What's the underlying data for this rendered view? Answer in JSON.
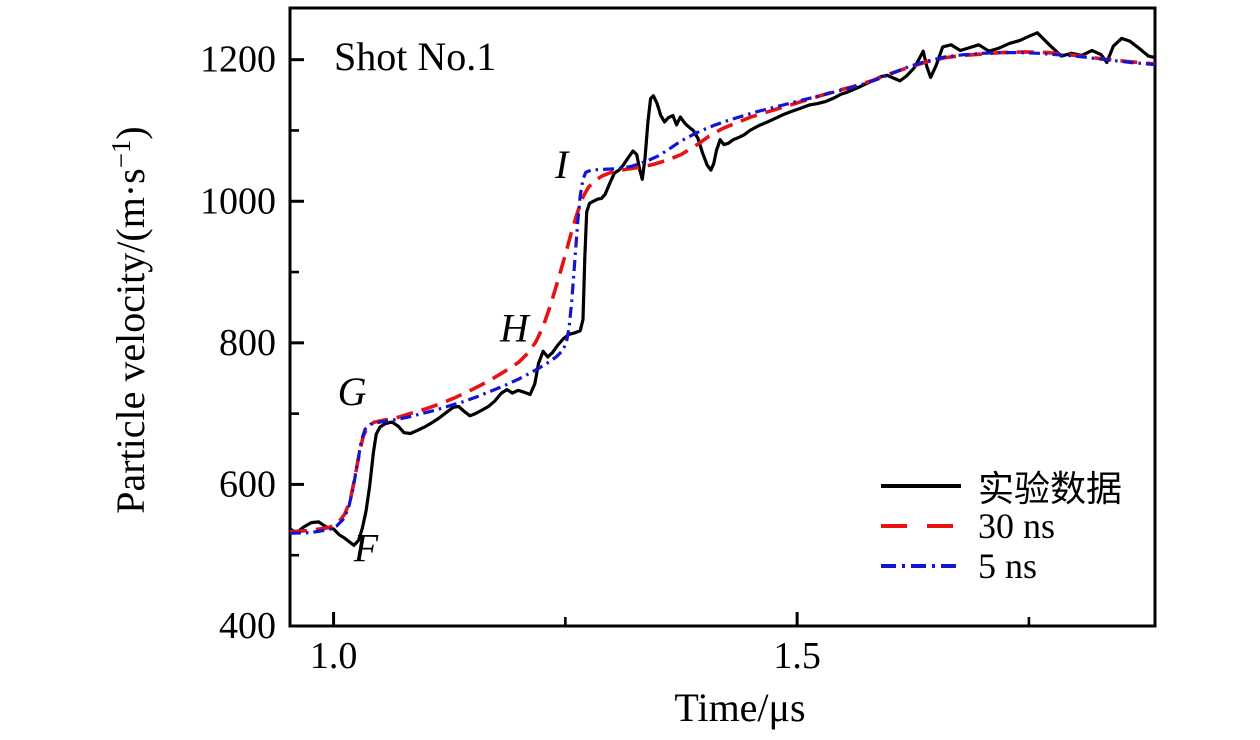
{
  "figure": {
    "annotation": "Shot No.1",
    "xlabel": "Time/μs",
    "ylabel_pre": "Particle velocity/(m·s",
    "ylabel_sup": "−1",
    "ylabel_post": ")"
  },
  "chart_data": {
    "type": "line",
    "title": "Shot No.1",
    "xlabel": "Time/μs",
    "ylabel": "Particle velocity/(m·s⁻¹)",
    "xlim": [
      0.953,
      1.886
    ],
    "ylim": [
      400,
      1273
    ],
    "grid": false,
    "legend_position": "lower right",
    "x_major_ticks": [
      1.0,
      1.5
    ],
    "x_major_tick_labels": [
      "1.0",
      "1.5"
    ],
    "x_minor_ticks": [
      1.25,
      1.75
    ],
    "y_major_ticks": [
      400,
      600,
      800,
      1000,
      1200
    ],
    "y_major_tick_labels": [
      "400",
      "600",
      "800",
      "1000",
      "1200"
    ],
    "y_minor_ticks": [
      500,
      700,
      900,
      1100
    ],
    "point_labels": [
      {
        "text": "F",
        "t": 1.035,
        "v": 510
      },
      {
        "text": "G",
        "t": 1.02,
        "v": 731
      },
      {
        "text": "H",
        "t": 1.195,
        "v": 821
      },
      {
        "text": "I",
        "t": 1.246,
        "v": 1052
      }
    ],
    "series": [
      {
        "name": "实验数据",
        "color": "#000000",
        "style": "solid",
        "width": 3.2,
        "points": [
          [
            0.953,
            537
          ],
          [
            0.96,
            532
          ],
          [
            0.968,
            540
          ],
          [
            0.976,
            546
          ],
          [
            0.984,
            547
          ],
          [
            0.992,
            540
          ],
          [
            1.0,
            537
          ],
          [
            1.006,
            529
          ],
          [
            1.012,
            524
          ],
          [
            1.017,
            519
          ],
          [
            1.022,
            514
          ],
          [
            1.027,
            521
          ],
          [
            1.031,
            538
          ],
          [
            1.035,
            562
          ],
          [
            1.039,
            598
          ],
          [
            1.043,
            645
          ],
          [
            1.046,
            671
          ],
          [
            1.05,
            681
          ],
          [
            1.056,
            686
          ],
          [
            1.063,
            688
          ],
          [
            1.07,
            682
          ],
          [
            1.076,
            673
          ],
          [
            1.083,
            672
          ],
          [
            1.09,
            676
          ],
          [
            1.098,
            681
          ],
          [
            1.106,
            687
          ],
          [
            1.114,
            694
          ],
          [
            1.122,
            702
          ],
          [
            1.129,
            709
          ],
          [
            1.135,
            710
          ],
          [
            1.141,
            703
          ],
          [
            1.147,
            697
          ],
          [
            1.153,
            700
          ],
          [
            1.16,
            705
          ],
          [
            1.167,
            710
          ],
          [
            1.174,
            718
          ],
          [
            1.181,
            729
          ],
          [
            1.187,
            734
          ],
          [
            1.193,
            729
          ],
          [
            1.199,
            733
          ],
          [
            1.206,
            730
          ],
          [
            1.212,
            727
          ],
          [
            1.217,
            742
          ],
          [
            1.221,
            771
          ],
          [
            1.226,
            788
          ],
          [
            1.231,
            780
          ],
          [
            1.236,
            786
          ],
          [
            1.242,
            797
          ],
          [
            1.248,
            806
          ],
          [
            1.254,
            812
          ],
          [
            1.26,
            814
          ],
          [
            1.266,
            817
          ],
          [
            1.269,
            833
          ],
          [
            1.271,
            920
          ],
          [
            1.273,
            985
          ],
          [
            1.276,
            997
          ],
          [
            1.28,
            1000
          ],
          [
            1.285,
            1003
          ],
          [
            1.289,
            1004
          ],
          [
            1.293,
            1010
          ],
          [
            1.298,
            1026
          ],
          [
            1.303,
            1040
          ],
          [
            1.308,
            1044
          ],
          [
            1.313,
            1052
          ],
          [
            1.318,
            1062
          ],
          [
            1.323,
            1071
          ],
          [
            1.327,
            1066
          ],
          [
            1.33,
            1046
          ],
          [
            1.333,
            1031
          ],
          [
            1.336,
            1062
          ],
          [
            1.339,
            1112
          ],
          [
            1.342,
            1145
          ],
          [
            1.345,
            1149
          ],
          [
            1.349,
            1138
          ],
          [
            1.353,
            1121
          ],
          [
            1.357,
            1112
          ],
          [
            1.361,
            1118
          ],
          [
            1.366,
            1121
          ],
          [
            1.37,
            1108
          ],
          [
            1.374,
            1119
          ],
          [
            1.379,
            1110
          ],
          [
            1.383,
            1105
          ],
          [
            1.388,
            1100
          ],
          [
            1.393,
            1089
          ],
          [
            1.398,
            1068
          ],
          [
            1.403,
            1051
          ],
          [
            1.407,
            1044
          ],
          [
            1.41,
            1053
          ],
          [
            1.413,
            1072
          ],
          [
            1.417,
            1087
          ],
          [
            1.421,
            1080
          ],
          [
            1.426,
            1082
          ],
          [
            1.431,
            1087
          ],
          [
            1.437,
            1090
          ],
          [
            1.443,
            1094
          ],
          [
            1.449,
            1100
          ],
          [
            1.459,
            1107
          ],
          [
            1.468,
            1112
          ],
          [
            1.478,
            1118
          ],
          [
            1.486,
            1123
          ],
          [
            1.494,
            1127
          ],
          [
            1.503,
            1131
          ],
          [
            1.513,
            1136
          ],
          [
            1.522,
            1138
          ],
          [
            1.531,
            1141
          ],
          [
            1.54,
            1146
          ],
          [
            1.547,
            1151
          ],
          [
            1.554,
            1154
          ],
          [
            1.561,
            1158
          ],
          [
            1.568,
            1162
          ],
          [
            1.576,
            1167
          ],
          [
            1.583,
            1171
          ],
          [
            1.59,
            1176
          ],
          [
            1.597,
            1178
          ],
          [
            1.604,
            1174
          ],
          [
            1.611,
            1170
          ],
          [
            1.618,
            1177
          ],
          [
            1.626,
            1188
          ],
          [
            1.632,
            1202
          ],
          [
            1.636,
            1212
          ],
          [
            1.64,
            1190
          ],
          [
            1.644,
            1175
          ],
          [
            1.65,
            1192
          ],
          [
            1.657,
            1218
          ],
          [
            1.666,
            1221
          ],
          [
            1.676,
            1213
          ],
          [
            1.686,
            1217
          ],
          [
            1.696,
            1221
          ],
          [
            1.707,
            1212
          ],
          [
            1.717,
            1216
          ],
          [
            1.729,
            1223
          ],
          [
            1.74,
            1227
          ],
          [
            1.75,
            1233
          ],
          [
            1.759,
            1238
          ],
          [
            1.772,
            1221
          ],
          [
            1.785,
            1205
          ],
          [
            1.796,
            1209
          ],
          [
            1.807,
            1206
          ],
          [
            1.818,
            1213
          ],
          [
            1.828,
            1207
          ],
          [
            1.834,
            1196
          ],
          [
            1.841,
            1219
          ],
          [
            1.85,
            1230
          ],
          [
            1.859,
            1226
          ],
          [
            1.869,
            1216
          ],
          [
            1.879,
            1205
          ],
          [
            1.886,
            1203
          ]
        ]
      },
      {
        "name": "30 ns",
        "color": "#e81214",
        "style": "dashed",
        "width": 3.6,
        "points": [
          [
            0.953,
            533
          ],
          [
            0.975,
            535
          ],
          [
            0.995,
            539
          ],
          [
            1.005,
            546
          ],
          [
            1.012,
            558
          ],
          [
            1.018,
            578
          ],
          [
            1.023,
            610
          ],
          [
            1.028,
            645
          ],
          [
            1.032,
            668
          ],
          [
            1.037,
            682
          ],
          [
            1.044,
            688
          ],
          [
            1.055,
            691
          ],
          [
            1.07,
            695
          ],
          [
            1.085,
            701
          ],
          [
            1.1,
            707
          ],
          [
            1.115,
            714
          ],
          [
            1.13,
            722
          ],
          [
            1.145,
            731
          ],
          [
            1.16,
            741
          ],
          [
            1.175,
            752
          ],
          [
            1.19,
            764
          ],
          [
            1.2,
            773
          ],
          [
            1.21,
            786
          ],
          [
            1.218,
            801
          ],
          [
            1.226,
            823
          ],
          [
            1.234,
            853
          ],
          [
            1.242,
            888
          ],
          [
            1.25,
            925
          ],
          [
            1.257,
            958
          ],
          [
            1.263,
            984
          ],
          [
            1.269,
            1006
          ],
          [
            1.275,
            1020
          ],
          [
            1.282,
            1029
          ],
          [
            1.29,
            1036
          ],
          [
            1.3,
            1041
          ],
          [
            1.315,
            1045
          ],
          [
            1.33,
            1048
          ],
          [
            1.345,
            1052
          ],
          [
            1.36,
            1058
          ],
          [
            1.375,
            1066
          ],
          [
            1.39,
            1078
          ],
          [
            1.405,
            1092
          ],
          [
            1.42,
            1103
          ],
          [
            1.435,
            1111
          ],
          [
            1.45,
            1119
          ],
          [
            1.465,
            1125
          ],
          [
            1.48,
            1131
          ],
          [
            1.5,
            1139
          ],
          [
            1.52,
            1147
          ],
          [
            1.54,
            1155
          ],
          [
            1.56,
            1162
          ],
          [
            1.58,
            1170
          ],
          [
            1.6,
            1180
          ],
          [
            1.62,
            1189
          ],
          [
            1.64,
            1197
          ],
          [
            1.66,
            1203
          ],
          [
            1.68,
            1206
          ],
          [
            1.7,
            1208
          ],
          [
            1.72,
            1210
          ],
          [
            1.745,
            1211
          ],
          [
            1.77,
            1210
          ],
          [
            1.8,
            1206
          ],
          [
            1.83,
            1201
          ],
          [
            1.86,
            1197
          ],
          [
            1.886,
            1194
          ]
        ]
      },
      {
        "name": "5 ns",
        "color": "#1414d2",
        "style": "dashdot",
        "width": 3.2,
        "points": [
          [
            0.953,
            531
          ],
          [
            0.975,
            532
          ],
          [
            0.995,
            536
          ],
          [
            1.003,
            541
          ],
          [
            1.01,
            550
          ],
          [
            1.016,
            566
          ],
          [
            1.021,
            594
          ],
          [
            1.026,
            632
          ],
          [
            1.03,
            662
          ],
          [
            1.034,
            678
          ],
          [
            1.04,
            685
          ],
          [
            1.05,
            688
          ],
          [
            1.065,
            691
          ],
          [
            1.08,
            695
          ],
          [
            1.095,
            700
          ],
          [
            1.11,
            705
          ],
          [
            1.125,
            711
          ],
          [
            1.14,
            717
          ],
          [
            1.155,
            724
          ],
          [
            1.17,
            732
          ],
          [
            1.185,
            740
          ],
          [
            1.2,
            749
          ],
          [
            1.21,
            756
          ],
          [
            1.22,
            763
          ],
          [
            1.23,
            771
          ],
          [
            1.24,
            780
          ],
          [
            1.247,
            789
          ],
          [
            1.251,
            800
          ],
          [
            1.254,
            822
          ],
          [
            1.257,
            860
          ],
          [
            1.26,
            912
          ],
          [
            1.263,
            965
          ],
          [
            1.266,
            1008
          ],
          [
            1.269,
            1031
          ],
          [
            1.272,
            1041
          ],
          [
            1.278,
            1044
          ],
          [
            1.29,
            1045
          ],
          [
            1.305,
            1046
          ],
          [
            1.32,
            1049
          ],
          [
            1.33,
            1053
          ],
          [
            1.34,
            1058
          ],
          [
            1.35,
            1064
          ],
          [
            1.36,
            1072
          ],
          [
            1.37,
            1081
          ],
          [
            1.38,
            1089
          ],
          [
            1.395,
            1099
          ],
          [
            1.41,
            1107
          ],
          [
            1.425,
            1114
          ],
          [
            1.44,
            1120
          ],
          [
            1.455,
            1126
          ],
          [
            1.47,
            1131
          ],
          [
            1.485,
            1136
          ],
          [
            1.5,
            1141
          ],
          [
            1.515,
            1146
          ],
          [
            1.53,
            1151
          ],
          [
            1.545,
            1156
          ],
          [
            1.56,
            1161
          ],
          [
            1.575,
            1167
          ],
          [
            1.59,
            1174
          ],
          [
            1.605,
            1182
          ],
          [
            1.62,
            1190
          ],
          [
            1.64,
            1198
          ],
          [
            1.66,
            1204
          ],
          [
            1.68,
            1207
          ],
          [
            1.7,
            1209
          ],
          [
            1.72,
            1210
          ],
          [
            1.74,
            1210
          ],
          [
            1.76,
            1209
          ],
          [
            1.78,
            1207
          ],
          [
            1.8,
            1205
          ],
          [
            1.82,
            1202
          ],
          [
            1.84,
            1199
          ],
          [
            1.86,
            1196
          ],
          [
            1.886,
            1193
          ]
        ]
      }
    ]
  }
}
